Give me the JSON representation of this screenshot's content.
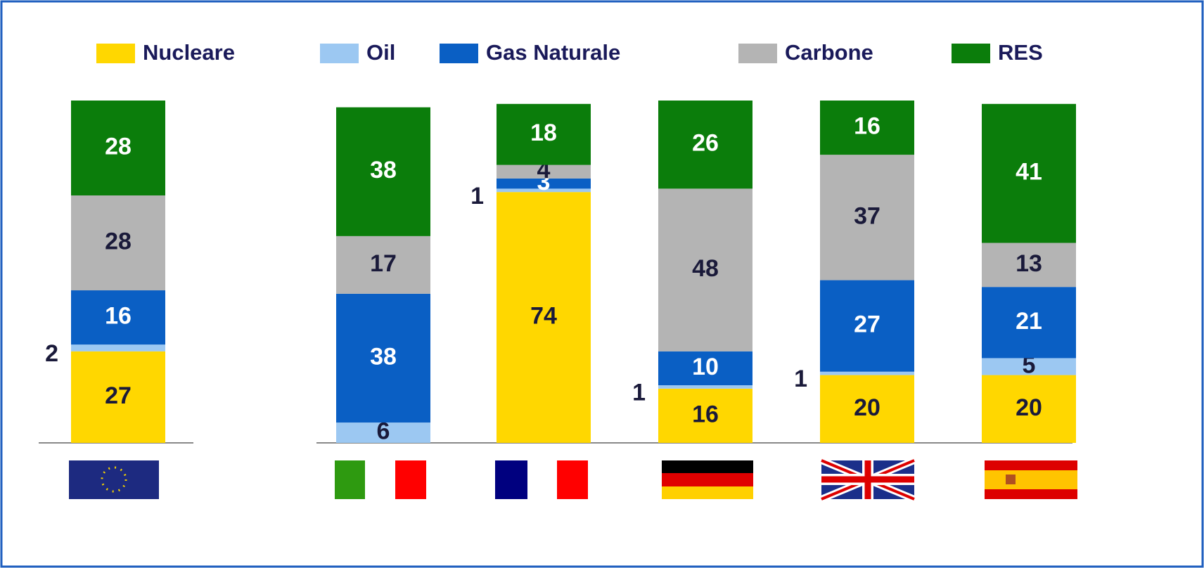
{
  "chart_data": {
    "type": "stacked-bar",
    "categories": [
      null,
      null,
      null,
      null,
      null,
      null
    ],
    "series": [
      {
        "name": "Nucleare",
        "color": "#ffd700",
        "values": [
          27,
          null,
          74,
          16,
          20,
          20
        ]
      },
      {
        "name": "Oil",
        "color": "#9cc8f2",
        "values": [
          2,
          6,
          1,
          1,
          1,
          5
        ]
      },
      {
        "name": "Gas Naturale",
        "color": "#0a5fc4",
        "values": [
          16,
          38,
          3,
          10,
          27,
          21
        ]
      },
      {
        "name": "Carbone",
        "color": "#b4b4b4",
        "values": [
          28,
          17,
          4,
          48,
          37,
          13
        ]
      },
      {
        "name": "RES",
        "color": "#0b7d0b",
        "values": [
          28,
          38,
          18,
          26,
          16,
          41
        ]
      }
    ],
    "legend": "top"
  }
}
